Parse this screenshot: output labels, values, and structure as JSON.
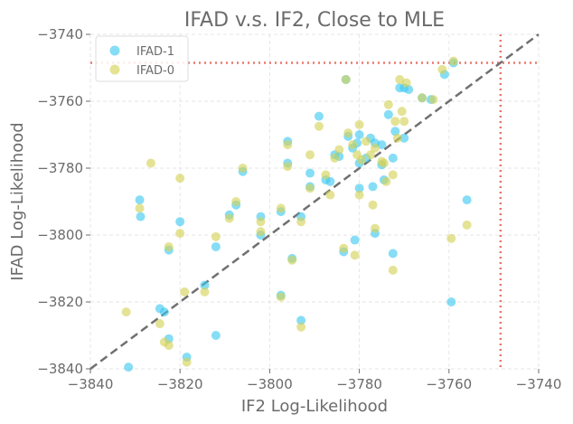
{
  "chart_data": {
    "type": "scatter",
    "title": "IFAD v.s. IF2, Close to MLE",
    "xlabel": "IF2 Log-Likelihood",
    "ylabel": "IFAD Log-Likelihood",
    "xlim": [
      -3840,
      -3740
    ],
    "ylim": [
      -3840,
      -3740
    ],
    "xticks": [
      -3840,
      -3820,
      -3800,
      -3780,
      -3760,
      -3740
    ],
    "yticks": [
      -3840,
      -3820,
      -3800,
      -3780,
      -3760,
      -3740
    ],
    "xtick_labels": [
      "−3840",
      "−3820",
      "−3800",
      "−3780",
      "−3760",
      "−3740"
    ],
    "ytick_labels": [
      "−3840",
      "−3820",
      "−3800",
      "−3780",
      "−3760",
      "−3740"
    ],
    "grid": true,
    "legend_position": "top-left",
    "identity_line": true,
    "reference_lines": {
      "x": -3748.5,
      "y": -3748.5,
      "color": "#e8766b"
    },
    "series": [
      {
        "name": "IFAD-1",
        "color": "#3cc8f0",
        "points": [
          [
            -3831.5,
            -3839.5
          ],
          [
            -3829,
            -3789.5
          ],
          [
            -3828.8,
            -3794.5
          ],
          [
            -3824.5,
            -3822
          ],
          [
            -3823.5,
            -3823
          ],
          [
            -3822.5,
            -3831
          ],
          [
            -3822.5,
            -3804.5
          ],
          [
            -3820,
            -3796
          ],
          [
            -3818.5,
            -3836.5
          ],
          [
            -3814.5,
            -3815
          ],
          [
            -3812,
            -3830
          ],
          [
            -3812,
            -3803.5
          ],
          [
            -3809,
            -3794
          ],
          [
            -3807.5,
            -3791
          ],
          [
            -3806,
            -3781
          ],
          [
            -3802,
            -3800
          ],
          [
            -3802,
            -3794.5
          ],
          [
            -3797.5,
            -3793
          ],
          [
            -3797.5,
            -3818
          ],
          [
            -3796,
            -3772
          ],
          [
            -3796,
            -3778.5
          ],
          [
            -3795,
            -3807
          ],
          [
            -3793,
            -3825.5
          ],
          [
            -3793,
            -3794.5
          ],
          [
            -3791,
            -3785.5
          ],
          [
            -3791,
            -3781.5
          ],
          [
            -3789,
            -3764.5
          ],
          [
            -3787.5,
            -3783.5
          ],
          [
            -3786.5,
            -3784
          ],
          [
            -3785.5,
            -3776
          ],
          [
            -3784.5,
            -3776.5
          ],
          [
            -3783.5,
            -3805
          ],
          [
            -3783,
            -3753.5
          ],
          [
            -3782.5,
            -3770.5
          ],
          [
            -3781.5,
            -3774
          ],
          [
            -3781,
            -3801.5
          ],
          [
            -3780.5,
            -3772.5
          ],
          [
            -3780,
            -3786
          ],
          [
            -3780,
            -3770
          ],
          [
            -3780,
            -3778.5
          ],
          [
            -3778.5,
            -3777
          ],
          [
            -3777.5,
            -3771
          ],
          [
            -3777,
            -3785.5
          ],
          [
            -3776.5,
            -3799.5
          ],
          [
            -3776.5,
            -3772.5
          ],
          [
            -3775,
            -3779
          ],
          [
            -3775,
            -3773
          ],
          [
            -3774.5,
            -3783.5
          ],
          [
            -3773.5,
            -3764
          ],
          [
            -3772.5,
            -3805.5
          ],
          [
            -3772.5,
            -3777
          ],
          [
            -3772,
            -3769
          ],
          [
            -3771,
            -3756
          ],
          [
            -3770,
            -3756
          ],
          [
            -3770,
            -3771
          ],
          [
            -3769,
            -3756.5
          ],
          [
            -3766,
            -3759
          ],
          [
            -3764,
            -3759.5
          ],
          [
            -3761,
            -3752
          ],
          [
            -3759.5,
            -3820
          ],
          [
            -3759,
            -3748.5
          ],
          [
            -3756,
            -3789.5
          ]
        ]
      },
      {
        "name": "IFAD-0",
        "color": "#d4d254",
        "points": [
          [
            -3832,
            -3823
          ],
          [
            -3829,
            -3792
          ],
          [
            -3826.5,
            -3778.5
          ],
          [
            -3824.5,
            -3826.5
          ],
          [
            -3823.5,
            -3832
          ],
          [
            -3822.5,
            -3833
          ],
          [
            -3822.5,
            -3803.5
          ],
          [
            -3820,
            -3783
          ],
          [
            -3820,
            -3799.5
          ],
          [
            -3818.5,
            -3838
          ],
          [
            -3819,
            -3817
          ],
          [
            -3814.5,
            -3817
          ],
          [
            -3812,
            -3800.5
          ],
          [
            -3809,
            -3795
          ],
          [
            -3807.5,
            -3790
          ],
          [
            -3806,
            -3780
          ],
          [
            -3802,
            -3799
          ],
          [
            -3802,
            -3796
          ],
          [
            -3797.5,
            -3792
          ],
          [
            -3797.5,
            -3818.5
          ],
          [
            -3796,
            -3773
          ],
          [
            -3796,
            -3779.5
          ],
          [
            -3795,
            -3807.5
          ],
          [
            -3793,
            -3827.5
          ],
          [
            -3793,
            -3796
          ],
          [
            -3791,
            -3786
          ],
          [
            -3791,
            -3776
          ],
          [
            -3789,
            -3767.5
          ],
          [
            -3787.5,
            -3782
          ],
          [
            -3786.5,
            -3788
          ],
          [
            -3785.5,
            -3777
          ],
          [
            -3784.5,
            -3774.5
          ],
          [
            -3783.5,
            -3804
          ],
          [
            -3783,
            -3753.5
          ],
          [
            -3782.5,
            -3769.5
          ],
          [
            -3781.5,
            -3773
          ],
          [
            -3781,
            -3806
          ],
          [
            -3780.5,
            -3776
          ],
          [
            -3780,
            -3788
          ],
          [
            -3780,
            -3767
          ],
          [
            -3779.5,
            -3777.5
          ],
          [
            -3778.5,
            -3772
          ],
          [
            -3777.5,
            -3776
          ],
          [
            -3777,
            -3791
          ],
          [
            -3776.5,
            -3798
          ],
          [
            -3776.5,
            -3774
          ],
          [
            -3775,
            -3778
          ],
          [
            -3774.5,
            -3778.5
          ],
          [
            -3774,
            -3784
          ],
          [
            -3773.5,
            -3761
          ],
          [
            -3772.5,
            -3810.5
          ],
          [
            -3772.5,
            -3782
          ],
          [
            -3772,
            -3766
          ],
          [
            -3771.5,
            -3771
          ],
          [
            -3771,
            -3753.5
          ],
          [
            -3770.5,
            -3763
          ],
          [
            -3770,
            -3766
          ],
          [
            -3769.5,
            -3754.5
          ],
          [
            -3766,
            -3759
          ],
          [
            -3763.5,
            -3759.5
          ],
          [
            -3761.5,
            -3750.5
          ],
          [
            -3759.5,
            -3801
          ],
          [
            -3759,
            -3748
          ],
          [
            -3756,
            -3797
          ]
        ]
      }
    ]
  }
}
